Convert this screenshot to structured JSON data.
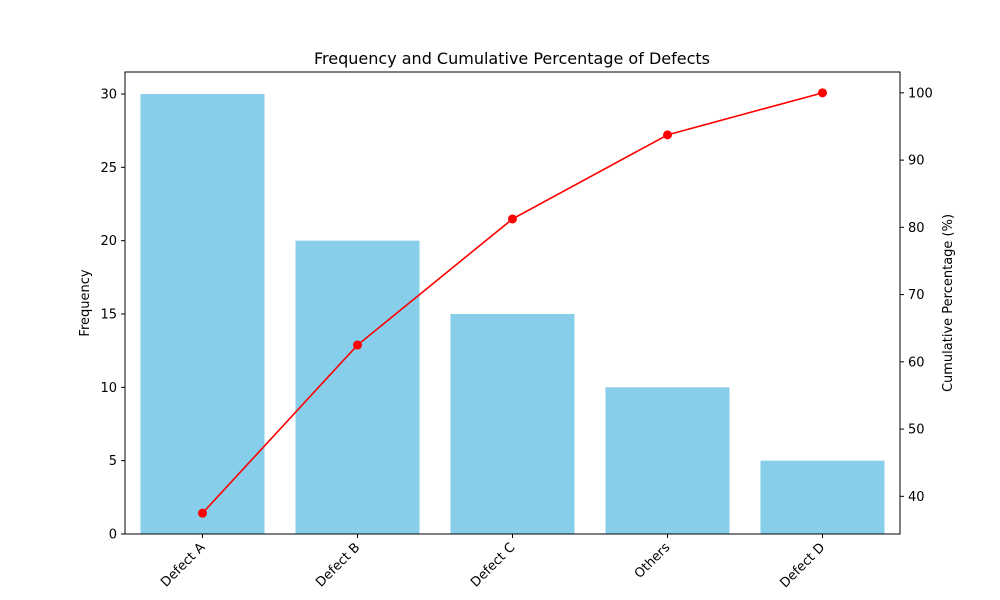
{
  "chart_data": {
    "type": "bar",
    "title": "Frequency and Cumulative Percentage of Defects",
    "categories": [
      "Defect A",
      "Defect B",
      "Defect C",
      "Others",
      "Defect D"
    ],
    "series": [
      {
        "type": "bar",
        "axis": "left",
        "values": [
          30,
          20,
          15,
          10,
          5
        ]
      },
      {
        "type": "line",
        "axis": "right",
        "values": [
          37.5,
          62.5,
          81.25,
          93.75,
          100
        ]
      }
    ],
    "ylabel": "Frequency",
    "ylim": [
      0,
      31.5
    ],
    "yticks": [
      0,
      5,
      10,
      15,
      20,
      25,
      30
    ],
    "y2label": "Cumulative Percentage (%)",
    "y2lim": [
      34.4,
      103.1
    ],
    "y2ticks": [
      40,
      50,
      60,
      70,
      80,
      90,
      100
    ],
    "colors": {
      "bar": "#87CEEB",
      "line": "#ff0000"
    },
    "grid": false
  }
}
